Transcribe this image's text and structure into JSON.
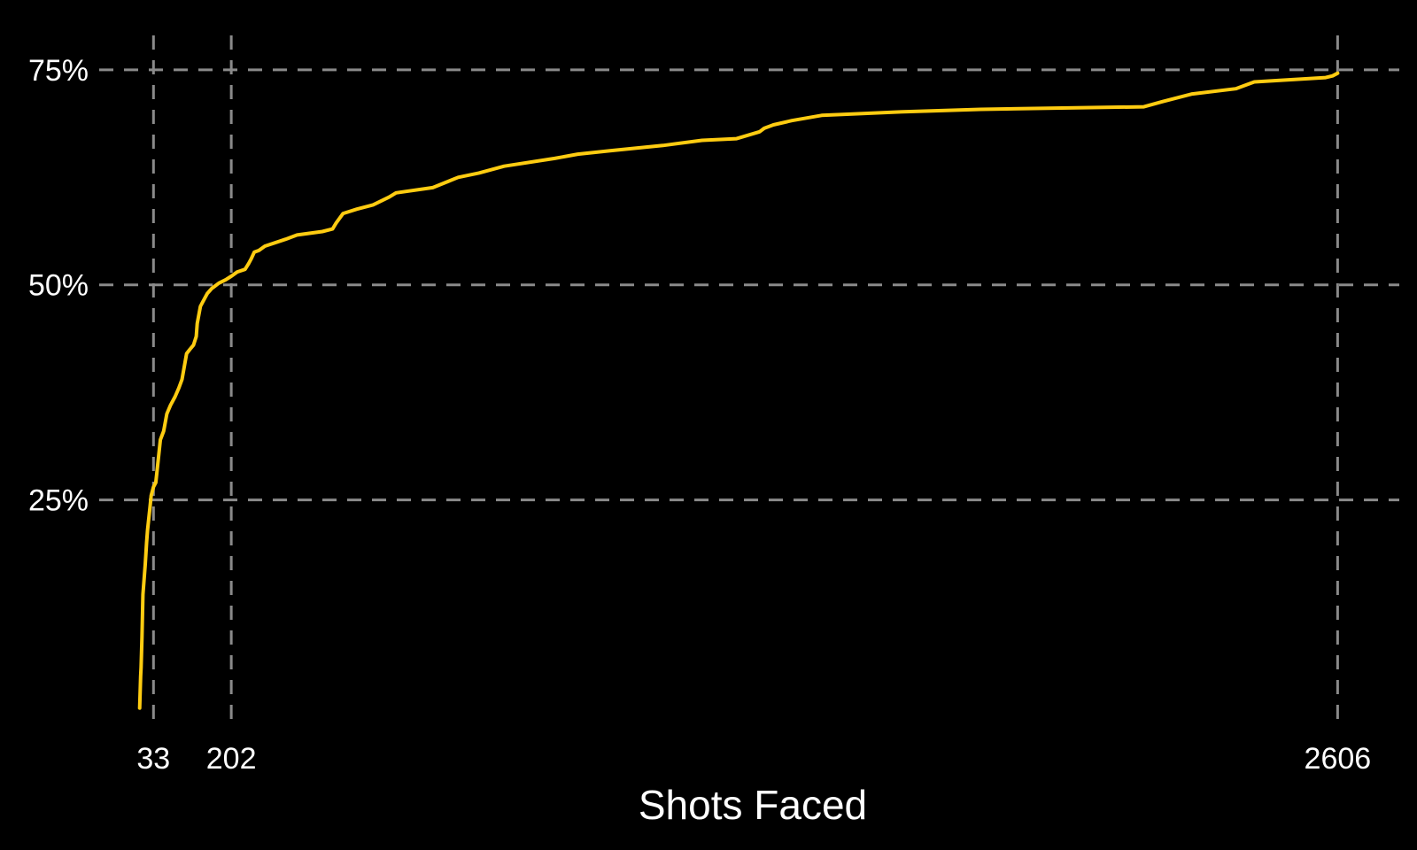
{
  "chart_data": {
    "type": "line",
    "xlabel": "Shots Faced",
    "ylabel": "",
    "x_ticks": [
      33,
      202,
      2606
    ],
    "x_tick_labels": [
      "33",
      "202",
      "2606"
    ],
    "y_ticks": [
      25,
      50,
      75
    ],
    "y_tick_labels": [
      "25%",
      "50%",
      "75%"
    ],
    "xlim": [
      -85,
      2740
    ],
    "ylim": [
      -1.5,
      79
    ],
    "grid": {
      "horizontal": true,
      "vertical_at_x_ticks": true
    },
    "legend": "none",
    "colors": {
      "background": "#000000",
      "line": "#FFCC11",
      "grid": "#8a8a8a",
      "text": "#ffffff"
    },
    "series": [
      {
        "x": [
          3,
          5,
          6,
          8,
          10,
          15,
          18,
          20,
          25,
          28,
          33,
          38,
          42,
          48,
          55,
          62,
          70,
          80,
          88,
          95,
          105,
          112,
          120,
          126,
          128,
          135,
          140,
          150,
          155,
          160,
          165,
          175,
          190,
          202,
          215,
          232,
          240,
          245,
          252,
          262,
          275,
          320,
          345,
          400,
          422,
          430,
          445,
          475,
          510,
          545,
          560,
          640,
          695,
          740,
          795,
          905,
          955,
          1025,
          1140,
          1225,
          1300,
          1350,
          1360,
          1380,
          1420,
          1485,
          1650,
          1830,
          2185,
          2225,
          2290,
          2385,
          2425,
          2580,
          2595,
          2606
        ],
        "y": [
          0.8,
          4.5,
          5.5,
          9,
          14,
          17.5,
          20,
          21.5,
          24,
          25.5,
          26.5,
          27,
          29,
          32,
          33,
          35,
          36,
          37,
          38,
          39,
          42,
          42.5,
          43,
          44,
          45.5,
          47.5,
          48,
          49,
          49.3,
          49.6,
          49.8,
          50.2,
          50.6,
          51,
          51.5,
          51.8,
          52.5,
          53,
          53.8,
          54,
          54.5,
          55.3,
          55.8,
          56.2,
          56.5,
          57.2,
          58.3,
          58.8,
          59.3,
          60.2,
          60.7,
          61.3,
          62.5,
          63,
          63.8,
          64.7,
          65.2,
          65.6,
          66.2,
          66.8,
          67,
          67.8,
          68.2,
          68.6,
          69.1,
          69.7,
          70.1,
          70.4,
          70.7,
          71.3,
          72.2,
          72.8,
          73.6,
          74.1,
          74.3,
          74.6
        ]
      }
    ]
  }
}
